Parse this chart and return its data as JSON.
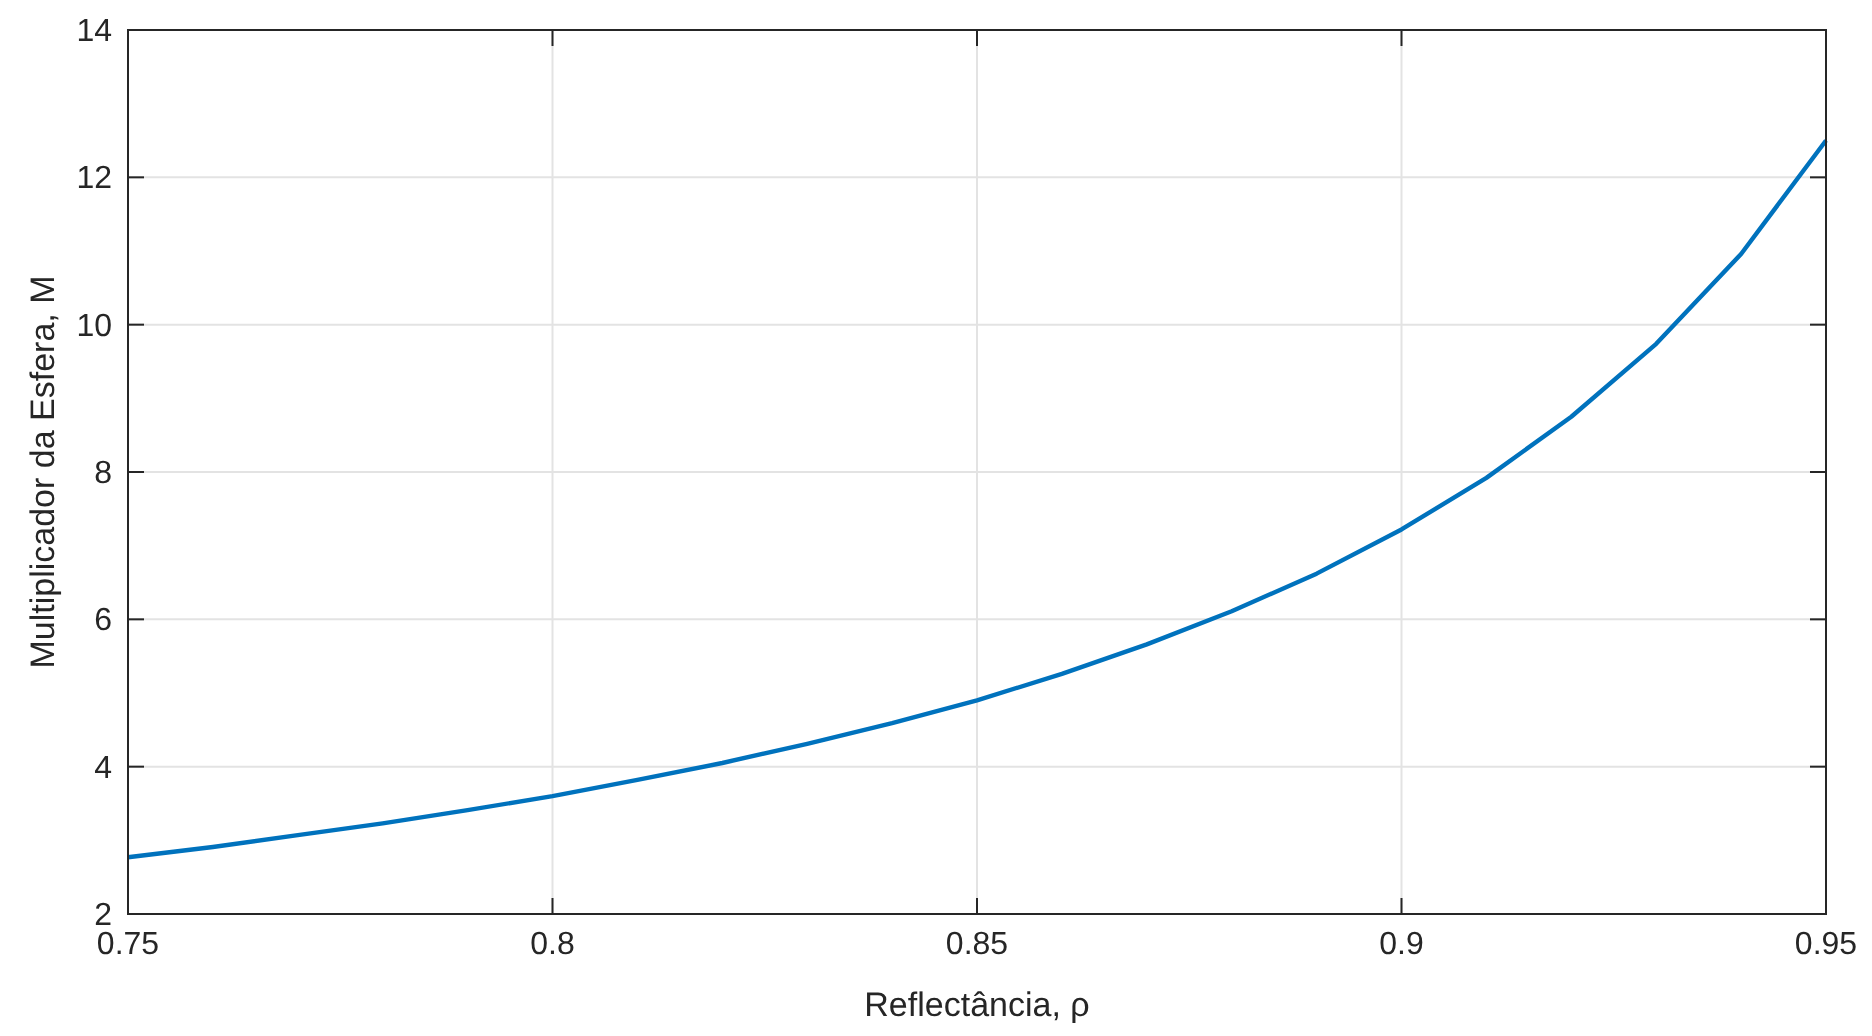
{
  "chart_data": {
    "type": "line",
    "xlabel": "Reflectância, ρ",
    "ylabel": "Multiplicador da Esfera, M",
    "x": [
      0.75,
      0.76,
      0.77,
      0.78,
      0.79,
      0.8,
      0.81,
      0.82,
      0.83,
      0.84,
      0.85,
      0.86,
      0.87,
      0.88,
      0.89,
      0.9,
      0.91,
      0.92,
      0.93,
      0.94,
      0.95
    ],
    "series": [
      {
        "color": "#0072bd",
        "values": [
          2.77,
          2.91,
          3.07,
          3.23,
          3.41,
          3.6,
          3.82,
          4.05,
          4.31,
          4.59,
          4.9,
          5.26,
          5.66,
          6.11,
          6.62,
          7.22,
          7.92,
          8.75,
          9.74,
          10.96,
          12.5
        ]
      }
    ],
    "xlim": [
      0.75,
      0.95
    ],
    "xticks": [
      0.75,
      0.8,
      0.85,
      0.9,
      0.95
    ],
    "ylim": [
      2,
      14
    ],
    "yticks": [
      2,
      4,
      6,
      8,
      10,
      12,
      14
    ],
    "grid": true,
    "line_style": "solid",
    "marker": "none"
  }
}
